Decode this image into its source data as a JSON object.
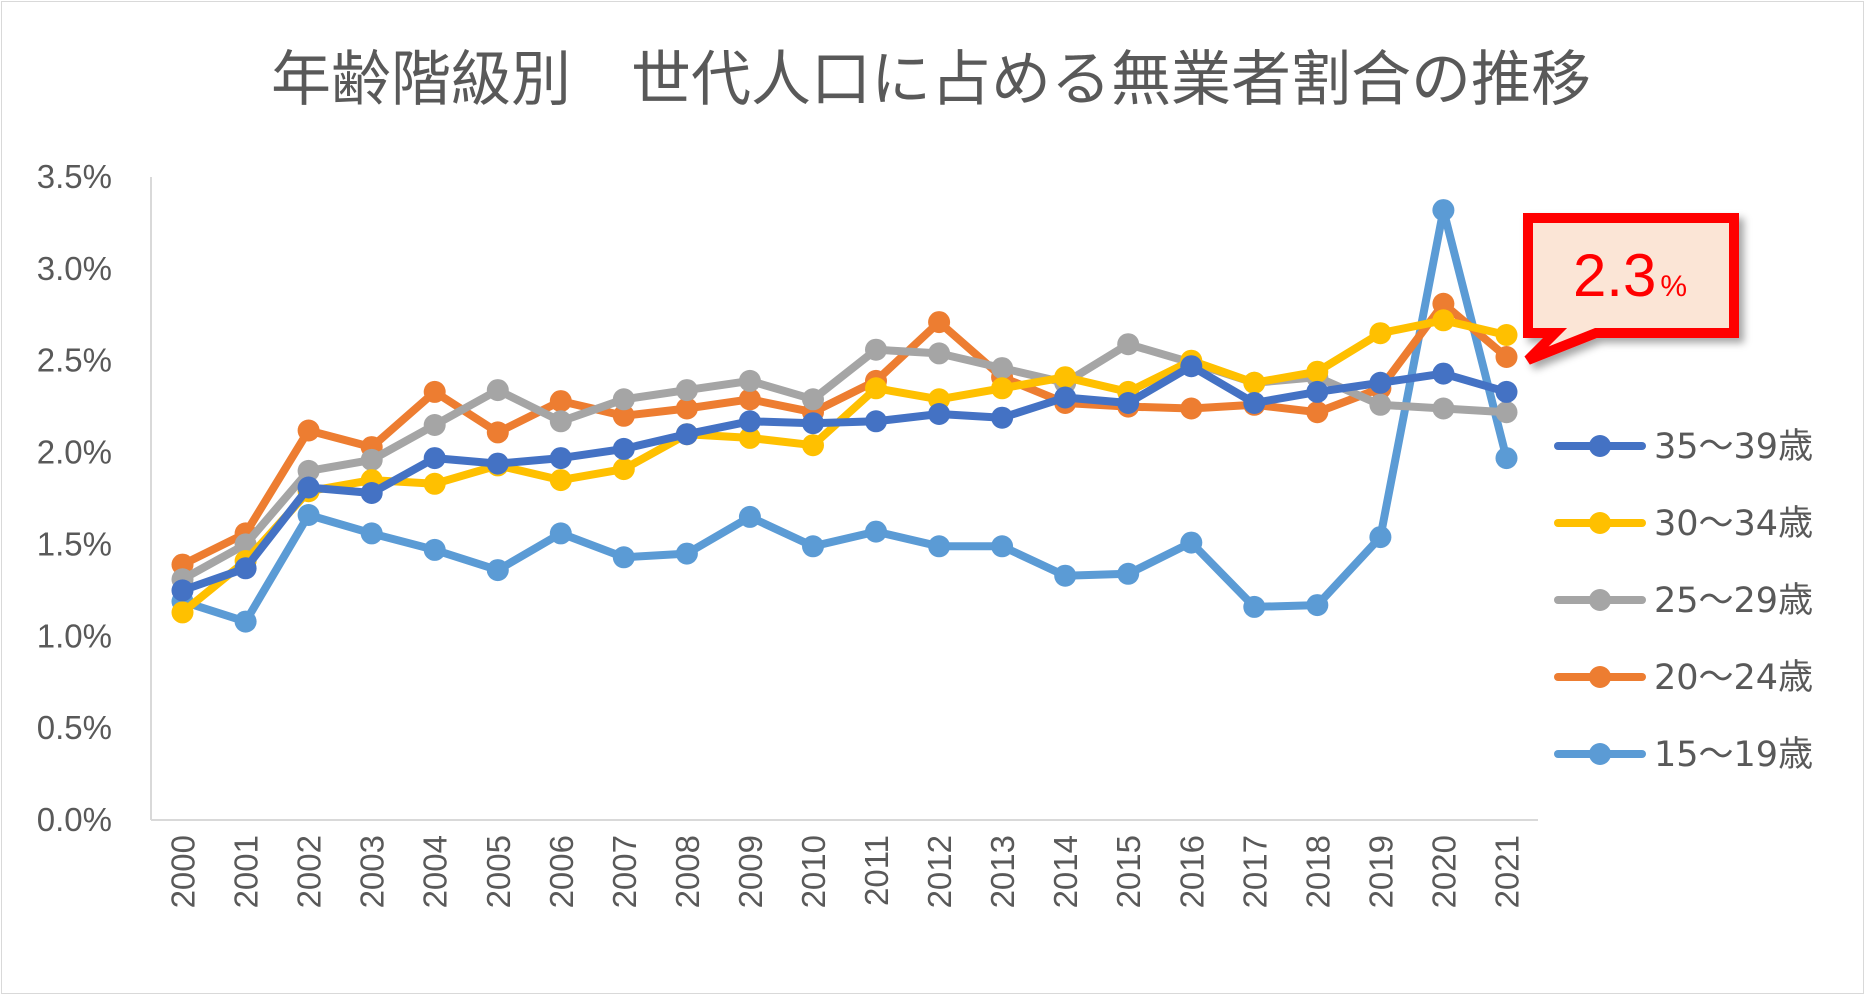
{
  "chart_data": {
    "type": "line",
    "title": "年齢階級別　世代人口に占める無業者割合の推移",
    "x": [
      "2000",
      "2001",
      "2002",
      "2003",
      "2004",
      "2005",
      "2006",
      "2007",
      "2008",
      "2009",
      "2010",
      "2011",
      "2012",
      "2013",
      "2014",
      "2015",
      "2016",
      "2017",
      "2018",
      "2019",
      "2020",
      "2021"
    ],
    "ylim": [
      0,
      3.5
    ],
    "yticks": [
      "0.0%",
      "0.5%",
      "1.0%",
      "1.5%",
      "2.0%",
      "2.5%",
      "3.0%",
      "3.5%"
    ],
    "unit": "%",
    "grid": false,
    "legend_position": "right",
    "series": [
      {
        "name": "15～19歳",
        "color": "#5b9bd5",
        "values": [
          1.19,
          1.08,
          1.66,
          1.56,
          1.47,
          1.36,
          1.56,
          1.43,
          1.45,
          1.65,
          1.49,
          1.57,
          1.49,
          1.49,
          1.33,
          1.34,
          1.51,
          1.16,
          1.17,
          1.54,
          3.32,
          1.97
        ]
      },
      {
        "name": "20～24歳",
        "color": "#ed7d31",
        "values": [
          1.39,
          1.56,
          2.12,
          2.03,
          2.33,
          2.11,
          2.28,
          2.2,
          2.24,
          2.29,
          2.22,
          2.39,
          2.71,
          2.41,
          2.27,
          2.25,
          2.24,
          2.26,
          2.22,
          2.35,
          2.81,
          2.52
        ]
      },
      {
        "name": "25～29歳",
        "color": "#a5a5a5",
        "values": [
          1.31,
          1.5,
          1.9,
          1.96,
          2.15,
          2.34,
          2.17,
          2.29,
          2.34,
          2.39,
          2.29,
          2.56,
          2.54,
          2.46,
          2.38,
          2.59,
          2.49,
          2.38,
          2.41,
          2.26,
          2.24,
          2.22
        ]
      },
      {
        "name": "30～34歳",
        "color": "#ffc000",
        "values": [
          1.13,
          1.41,
          1.79,
          1.85,
          1.83,
          1.93,
          1.85,
          1.91,
          2.1,
          2.08,
          2.04,
          2.35,
          2.29,
          2.35,
          2.41,
          2.33,
          2.5,
          2.38,
          2.44,
          2.65,
          2.72,
          2.64
        ]
      },
      {
        "name": "35～39歳",
        "color": "#4472c4",
        "values": [
          1.25,
          1.37,
          1.81,
          1.78,
          1.97,
          1.94,
          1.97,
          2.02,
          2.1,
          2.17,
          2.16,
          2.17,
          2.21,
          2.19,
          2.3,
          2.27,
          2.47,
          2.27,
          2.33,
          2.38,
          2.43,
          2.33
        ]
      }
    ],
    "legend_order": [
      "35～39歳",
      "30～34歳",
      "25～29歳",
      "20～24歳",
      "15～19歳"
    ],
    "annotation": {
      "value": "2.3",
      "unit": "%",
      "border_color": "#ff0000",
      "fill_color": "#fbe5d6"
    }
  }
}
